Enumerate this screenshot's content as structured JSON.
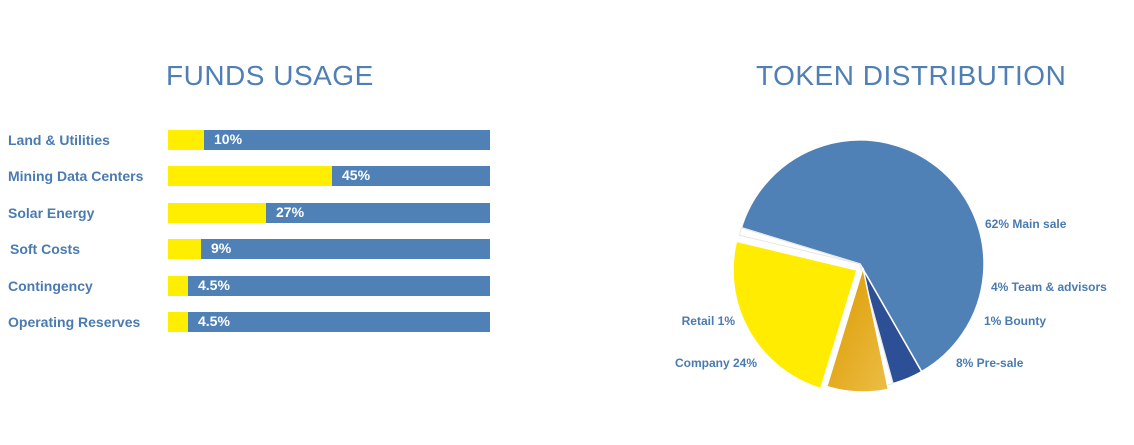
{
  "funds_usage": {
    "title": "FUNDS USAGE",
    "chart_data": {
      "type": "bar",
      "orientation": "horizontal",
      "title": "FUNDS USAGE",
      "categories": [
        "Land & Utilities",
        "Mining Data Centers",
        "Solar Energy",
        "Soft Costs",
        "Contingency",
        "Operating Reserves"
      ],
      "values": [
        10,
        45,
        27,
        9,
        4.5,
        4.5
      ],
      "value_labels": [
        "10%",
        "45%",
        "27%",
        "9%",
        "4.5%",
        "4.5%"
      ],
      "xlim": [
        0,
        100
      ],
      "grid": false,
      "colors": {
        "fill": "#ffee00",
        "track": "#4f81b7"
      }
    }
  },
  "token_distribution": {
    "title": "TOKEN DISTRIBUTION",
    "chart_data": {
      "type": "pie",
      "title": "TOKEN DISTRIBUTION",
      "slices": [
        {
          "label": "62% Main sale",
          "value": 62,
          "color": "#4f81b7",
          "exploded": false
        },
        {
          "label": "4% Team & advisors",
          "value": 4,
          "color": "#2d4f96",
          "exploded": false
        },
        {
          "label": "1%  Bounty",
          "value": 1,
          "color": "#ffffff",
          "exploded": false
        },
        {
          "label": "8%  Pre-sale",
          "value": 8,
          "color": "#e3a414",
          "exploded": true
        },
        {
          "label": "Company  24%",
          "value": 24,
          "color": "#ffec00",
          "exploded": true
        },
        {
          "label": "Retail 1%",
          "value": 1,
          "color": "#ffffff",
          "exploded": false
        }
      ],
      "legend": "none"
    }
  }
}
